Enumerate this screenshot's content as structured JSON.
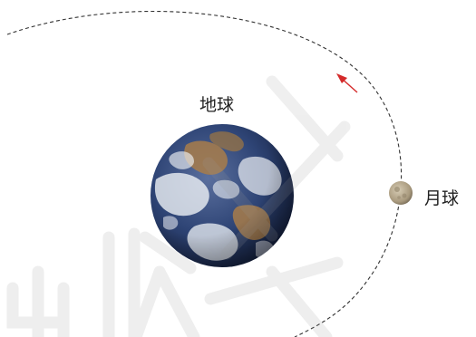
{
  "labels": {
    "earth": "地球",
    "moon": "月球"
  },
  "watermark": "出版社",
  "colors": {
    "orbit": "#333333",
    "direction_arrow": "#d42a2a",
    "label_text": "#222222",
    "ocean": "#2a3b6b",
    "cloud": "#eef1f5",
    "land": "#a87c4a",
    "moon": "#b9ab8f",
    "watermark": "#d0d0d0"
  },
  "orbit": {
    "style": "dashed",
    "direction": "counterclockwise"
  }
}
